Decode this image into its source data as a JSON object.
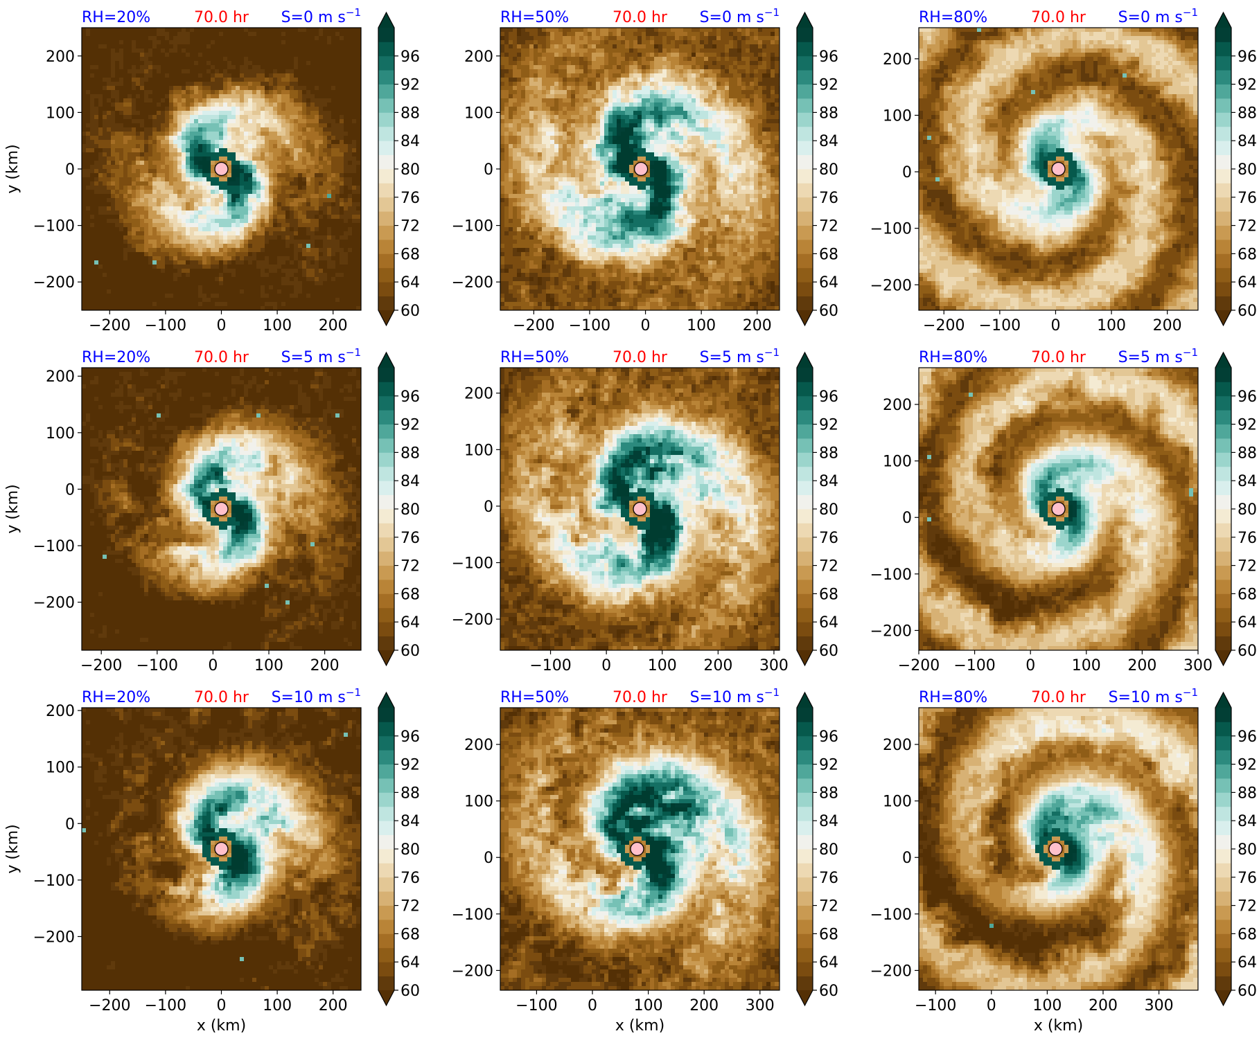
{
  "colormap": {
    "name": "BrBG",
    "levels": [
      60,
      62,
      64,
      66,
      68,
      70,
      72,
      74,
      76,
      78,
      80,
      82,
      84,
      86,
      88,
      90,
      92,
      94,
      96,
      98
    ],
    "colors": [
      "#603a0c",
      "#7b4c10",
      "#8f5d17",
      "#a56e24",
      "#b98437",
      "#c99a52",
      "#d7b174",
      "#e3c795",
      "#edd9b3",
      "#f4ebd3",
      "#f1f1ec",
      "#d9efed",
      "#bfe5e0",
      "#9bd5cc",
      "#76c1b5",
      "#4fa79a",
      "#2c8a7e",
      "#146f63",
      "#06594c",
      "#023f35"
    ],
    "extend_low": "#543005",
    "extend_high": "#003c30",
    "tick_labels": [
      "60",
      "64",
      "68",
      "72",
      "76",
      "80",
      "84",
      "88",
      "92",
      "96"
    ]
  },
  "marker_color": "#ffc0cb",
  "title_colors": {
    "rh": "#0000ff",
    "time": "#ff0000",
    "shear": "#0000ff"
  },
  "chart_data": [
    {
      "type": "heatmap",
      "title": {
        "rh": "RH=20%",
        "time": "70.0 hr",
        "shear_prefix": "S=0 m s",
        "shear_exp": "−1"
      },
      "xlim": [
        -250,
        250
      ],
      "ylim": [
        -250,
        250
      ],
      "xticks": [
        -200,
        -100,
        0,
        100,
        200
      ],
      "xtick_labels": [
        "−200",
        "−100",
        "0",
        "100",
        "200"
      ],
      "yticks": [
        -200,
        -100,
        0,
        100,
        200
      ],
      "ytick_labels": [
        "−200",
        "−100",
        "0",
        "100",
        "200"
      ],
      "ylabel": "y (km)",
      "xlabel": "",
      "center": [
        0,
        0
      ],
      "moisture": "dry",
      "shear": 0
    },
    {
      "type": "heatmap",
      "title": {
        "rh": "RH=50%",
        "time": "70.0 hr",
        "shear_prefix": "S=0 m s",
        "shear_exp": "−1"
      },
      "xlim": [
        -260,
        240
      ],
      "ylim": [
        -250,
        250
      ],
      "xticks": [
        -200,
        -100,
        0,
        100,
        200
      ],
      "xtick_labels": [
        "−200",
        "−100",
        "0",
        "100",
        "200"
      ],
      "yticks": [
        -200,
        -100,
        0,
        100,
        200
      ],
      "ytick_labels": [
        "−200",
        "−100",
        "0",
        "100",
        "200"
      ],
      "ylabel": "",
      "xlabel": "",
      "center": [
        -8,
        0
      ],
      "moisture": "mid",
      "shear": 0
    },
    {
      "type": "heatmap",
      "title": {
        "rh": "RH=80%",
        "time": "70.0 hr",
        "shear_prefix": "S=0 m s",
        "shear_exp": "−1"
      },
      "xlim": [
        -245,
        255
      ],
      "ylim": [
        -245,
        255
      ],
      "xticks": [
        -200,
        -100,
        0,
        100,
        200
      ],
      "xtick_labels": [
        "−200",
        "−100",
        "0",
        "100",
        "200"
      ],
      "yticks": [
        -200,
        -100,
        0,
        100,
        200
      ],
      "ytick_labels": [
        "−200",
        "−100",
        "0",
        "100",
        "200"
      ],
      "ylabel": "",
      "xlabel": "",
      "center": [
        5,
        5
      ],
      "moisture": "moist",
      "shear": 0
    },
    {
      "type": "heatmap",
      "title": {
        "rh": "RH=20%",
        "time": "70.0 hr",
        "shear_prefix": "S=5 m s",
        "shear_exp": "−1"
      },
      "xlim": [
        -235,
        265
      ],
      "ylim": [
        -285,
        215
      ],
      "xticks": [
        -200,
        -100,
        0,
        100,
        200
      ],
      "xtick_labels": [
        "−200",
        "−100",
        "0",
        "100",
        "200"
      ],
      "yticks": [
        -200,
        -100,
        0,
        100,
        200
      ],
      "ytick_labels": [
        "−200",
        "−100",
        "0",
        "100",
        "200"
      ],
      "ylabel": "y (km)",
      "xlabel": "",
      "center": [
        15,
        -35
      ],
      "moisture": "dry",
      "shear": 5
    },
    {
      "type": "heatmap",
      "title": {
        "rh": "RH=50%",
        "time": "70.0 hr",
        "shear_prefix": "S=5 m s",
        "shear_exp": "−1"
      },
      "xlim": [
        -190,
        310
      ],
      "ylim": [
        -255,
        245
      ],
      "xticks": [
        -100,
        0,
        100,
        200,
        300
      ],
      "xtick_labels": [
        "−100",
        "0",
        "100",
        "200",
        "300"
      ],
      "yticks": [
        -200,
        -100,
        0,
        100,
        200
      ],
      "ytick_labels": [
        "−200",
        "−100",
        "0",
        "100",
        "200"
      ],
      "ylabel": "",
      "xlabel": "",
      "center": [
        60,
        -5
      ],
      "moisture": "mid",
      "shear": 5
    },
    {
      "type": "heatmap",
      "title": {
        "rh": "RH=80%",
        "time": "70.0 hr",
        "shear_prefix": "S=5 m s",
        "shear_exp": "−1"
      },
      "xlim": [
        -200,
        300
      ],
      "ylim": [
        -235,
        265
      ],
      "xticks": [
        -200,
        -100,
        0,
        100,
        200,
        300
      ],
      "xtick_labels": [
        "−200",
        "−100",
        "0",
        "100",
        "200",
        "300"
      ],
      "yticks": [
        -200,
        -100,
        0,
        100,
        200
      ],
      "ytick_labels": [
        "−200",
        "−100",
        "0",
        "100",
        "200"
      ],
      "ylabel": "",
      "xlabel": "",
      "center": [
        50,
        15
      ],
      "moisture": "moist",
      "shear": 5
    },
    {
      "type": "heatmap",
      "title": {
        "rh": "RH=20%",
        "time": "70.0 hr",
        "shear_prefix": "S=10 m s",
        "shear_exp": "−1"
      },
      "xlim": [
        -250,
        250
      ],
      "ylim": [
        -295,
        205
      ],
      "xticks": [
        -200,
        -100,
        0,
        100,
        200
      ],
      "xtick_labels": [
        "−200",
        "−100",
        "0",
        "100",
        "200"
      ],
      "yticks": [
        -200,
        -100,
        0,
        100,
        200
      ],
      "ytick_labels": [
        "−200",
        "−100",
        "0",
        "100",
        "200"
      ],
      "ylabel": "y (km)",
      "xlabel": "x (km)",
      "center": [
        0,
        -45
      ],
      "moisture": "dry",
      "shear": 10
    },
    {
      "type": "heatmap",
      "title": {
        "rh": "RH=50%",
        "time": "70.0 hr",
        "shear_prefix": "S=10 m s",
        "shear_exp": "−1"
      },
      "xlim": [
        -165,
        335
      ],
      "ylim": [
        -235,
        265
      ],
      "xticks": [
        -100,
        0,
        100,
        200,
        300
      ],
      "xtick_labels": [
        "−100",
        "0",
        "100",
        "200",
        "300"
      ],
      "yticks": [
        -200,
        -100,
        0,
        100,
        200
      ],
      "ytick_labels": [
        "−200",
        "−100",
        "0",
        "100",
        "200"
      ],
      "ylabel": "",
      "xlabel": "x (km)",
      "center": [
        80,
        15
      ],
      "moisture": "mid",
      "shear": 10
    },
    {
      "type": "heatmap",
      "title": {
        "rh": "RH=80%",
        "time": "70.0 hr",
        "shear_prefix": "S=10 m s",
        "shear_exp": "−1"
      },
      "xlim": [
        -130,
        370
      ],
      "ylim": [
        -235,
        265
      ],
      "xticks": [
        -100,
        0,
        100,
        200,
        300
      ],
      "xtick_labels": [
        "−100",
        "0",
        "100",
        "200",
        "300"
      ],
      "yticks": [
        -200,
        -100,
        0,
        100,
        200
      ],
      "ytick_labels": [
        "−200",
        "−100",
        "0",
        "100",
        "200"
      ],
      "ylabel": "",
      "xlabel": "x (km)",
      "center": [
        115,
        15
      ],
      "moisture": "moist",
      "shear": 10
    }
  ]
}
